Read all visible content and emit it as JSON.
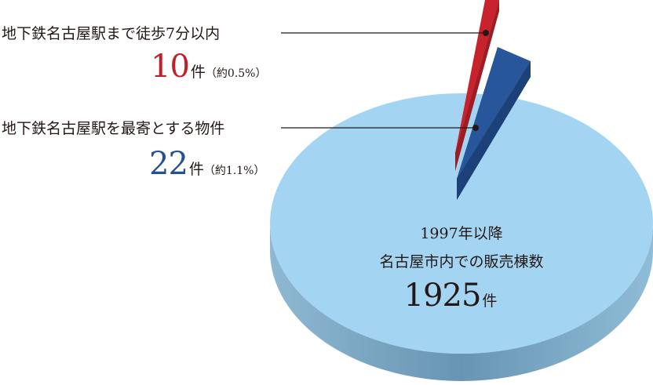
{
  "chart_data": {
    "type": "pie",
    "total_label": {
      "line1": "1997年以降",
      "line2": "名古屋市内での販売棟数",
      "value": "1925",
      "unit": "件"
    },
    "total": 1925,
    "slices": [
      {
        "name": "地下鉄名古屋駅まで徒歩7分以内",
        "value": 10,
        "value_text": "10",
        "unit": "件",
        "note": "（約0.5%）",
        "color": "#c8232c",
        "side_color": "#8c1a20"
      },
      {
        "name": "地下鉄名古屋駅を最寄とする物件",
        "value": 22,
        "value_text": "22",
        "unit": "件",
        "note": "（約1.1%）",
        "color": "#27569a",
        "side_color": "#15335f"
      }
    ],
    "base_color": "#a3d5f3",
    "base_side_color": "#6a9fbf"
  }
}
